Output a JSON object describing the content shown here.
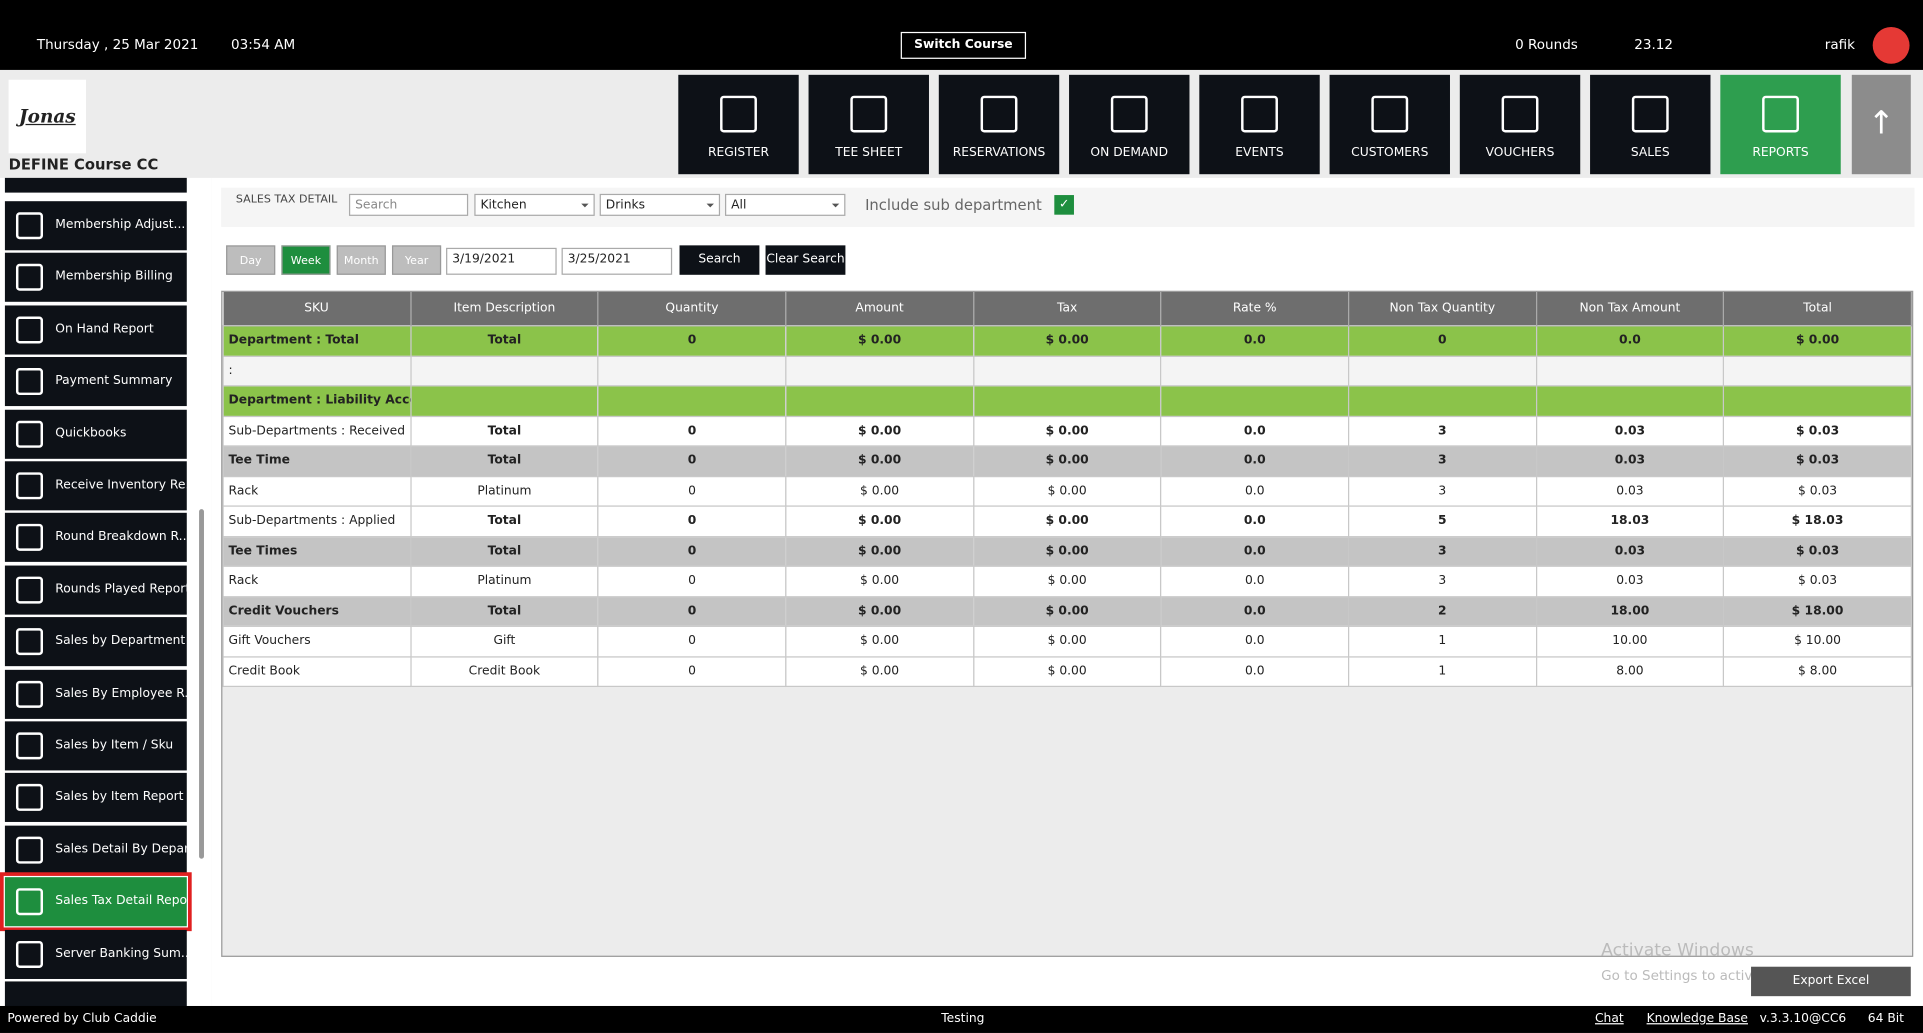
{
  "topbar": {
    "date": "Thursday ,  25 Mar 2021",
    "time": "03:54 AM",
    "switch_course": "Switch Course",
    "rounds": "0 Rounds",
    "balance": "23.12",
    "user": "rafik"
  },
  "brand": {
    "logo": "Jonas",
    "course": "DEFINE Course CC"
  },
  "nav": [
    "REGISTER",
    "TEE SHEET",
    "RESERVATIONS",
    "ON DEMAND",
    "EVENTS",
    "CUSTOMERS",
    "VOUCHERS",
    "SALES",
    "REPORTS"
  ],
  "sidebar": [
    "Membership Adjust...",
    "Membership Billing",
    "On Hand Report",
    "Payment Summary",
    "Quickbooks",
    "Receive Inventory Re...",
    "Round Breakdown R...",
    "Rounds Played Report",
    "Sales by Department",
    "Sales By Employee R...",
    "Sales by Item / Sku",
    "Sales by Item Report",
    "Sales Detail By Depar...",
    "Sales Tax Detail Report",
    "Server Banking Sum..."
  ],
  "filters": {
    "title": "SALES TAX DETAIL",
    "search_placeholder": "Search",
    "department": "Kitchen",
    "sub_department": "Drinks",
    "item": "All",
    "include_sub": "Include sub department",
    "periods": [
      "Day",
      "Week",
      "Month",
      "Year"
    ],
    "from": "3/19/2021",
    "to": "3/25/2021",
    "search": "Search",
    "clear": "Clear Search"
  },
  "table": {
    "headers": [
      "SKU",
      "Item Description",
      "Quantity",
      "Amount",
      "Tax",
      "Rate %",
      "Non Tax Quantity",
      "Non Tax Amount",
      "Total"
    ],
    "rows": [
      [
        "Department : Total",
        "Total",
        "0",
        "$ 0.00",
        "$ 0.00",
        "0.0",
        "0",
        "0.0",
        "$ 0.00"
      ],
      [
        ":",
        "",
        "",
        "",
        "",
        "",
        "",
        "",
        ""
      ],
      [
        "Department : Liability Account",
        "",
        "",
        "",
        "",
        "",
        "",
        "",
        ""
      ],
      [
        "Sub-Departments : Received",
        "Total",
        "0",
        "$ 0.00",
        "$ 0.00",
        "0.0",
        "3",
        "0.03",
        "$ 0.03"
      ],
      [
        "Tee Time",
        "Total",
        "0",
        "$ 0.00",
        "$ 0.00",
        "0.0",
        "3",
        "0.03",
        "$ 0.03"
      ],
      [
        "Rack",
        "Platinum",
        "0",
        "$ 0.00",
        "$ 0.00",
        "0.0",
        "3",
        "0.03",
        "$ 0.03"
      ],
      [
        "Sub-Departments : Applied",
        "Total",
        "0",
        "$ 0.00",
        "$ 0.00",
        "0.0",
        "5",
        "18.03",
        "$ 18.03"
      ],
      [
        "Tee Times",
        "Total",
        "0",
        "$ 0.00",
        "$ 0.00",
        "0.0",
        "3",
        "0.03",
        "$ 0.03"
      ],
      [
        "Rack",
        "Platinum",
        "0",
        "$ 0.00",
        "$ 0.00",
        "0.0",
        "3",
        "0.03",
        "$ 0.03"
      ],
      [
        "Credit Vouchers",
        "Total",
        "0",
        "$ 0.00",
        "$ 0.00",
        "0.0",
        "2",
        "18.00",
        "$ 18.00"
      ],
      [
        "Gift Vouchers",
        "Gift",
        "0",
        "$ 0.00",
        "$ 0.00",
        "0.0",
        "1",
        "10.00",
        "$ 10.00"
      ],
      [
        "Credit Book",
        "Credit Book",
        "0",
        "$ 0.00",
        "$ 0.00",
        "0.0",
        "1",
        "8.00",
        "$ 8.00"
      ]
    ]
  },
  "export": "Export Excel",
  "watermark": {
    "title": "Activate Windows",
    "text": "Go to Settings to activ"
  },
  "footer": {
    "powered": "Powered by Club Caddie",
    "env": "Testing",
    "chat": "Chat",
    "kb": "Knowledge Base",
    "version": "v.3.3.10@CC6",
    "bits": "64 Bit"
  }
}
